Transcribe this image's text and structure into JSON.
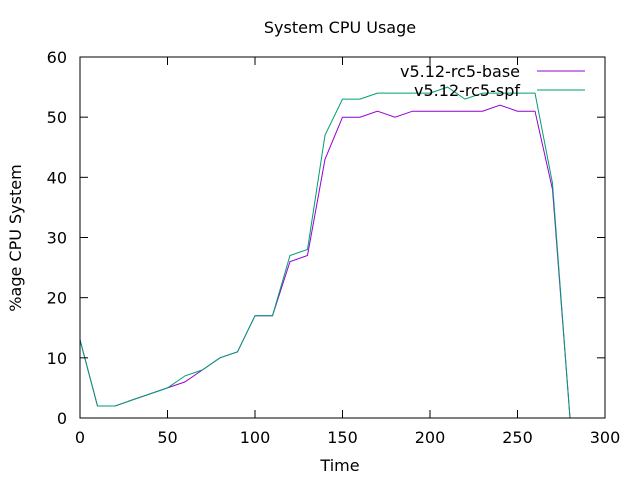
{
  "chart_data": {
    "type": "line",
    "title": "System CPU Usage",
    "xlabel": "Time",
    "ylabel": "%age CPU System",
    "xlim": [
      0,
      300
    ],
    "ylim": [
      0,
      60
    ],
    "xticks": [
      0,
      50,
      100,
      150,
      200,
      250,
      300
    ],
    "yticks": [
      0,
      10,
      20,
      30,
      40,
      50,
      60
    ],
    "grid": false,
    "legend_position": "top-right",
    "series": [
      {
        "name": "v5.12-rc5-base",
        "color": "#9400d3",
        "x": [
          0,
          10,
          20,
          30,
          40,
          50,
          60,
          70,
          80,
          90,
          100,
          110,
          120,
          130,
          140,
          150,
          160,
          170,
          180,
          190,
          200,
          210,
          220,
          230,
          240,
          250,
          260,
          270,
          280
        ],
        "y": [
          13,
          2,
          2,
          3,
          4,
          5,
          6,
          8,
          10,
          11,
          17,
          17,
          26,
          27,
          43,
          50,
          50,
          51,
          50,
          51,
          51,
          51,
          51,
          51,
          52,
          51,
          51,
          38,
          0
        ]
      },
      {
        "name": "v5.12-rc5-spf",
        "color": "#009e73",
        "x": [
          0,
          10,
          20,
          30,
          40,
          50,
          60,
          70,
          80,
          90,
          100,
          110,
          120,
          130,
          140,
          150,
          160,
          170,
          180,
          190,
          200,
          210,
          220,
          230,
          240,
          250,
          260,
          270,
          280
        ],
        "y": [
          13,
          2,
          2,
          3,
          4,
          5,
          7,
          8,
          10,
          11,
          17,
          17,
          27,
          28,
          47,
          53,
          53,
          54,
          54,
          54,
          54,
          55,
          53,
          54,
          54,
          54,
          54,
          39,
          0
        ]
      }
    ]
  }
}
